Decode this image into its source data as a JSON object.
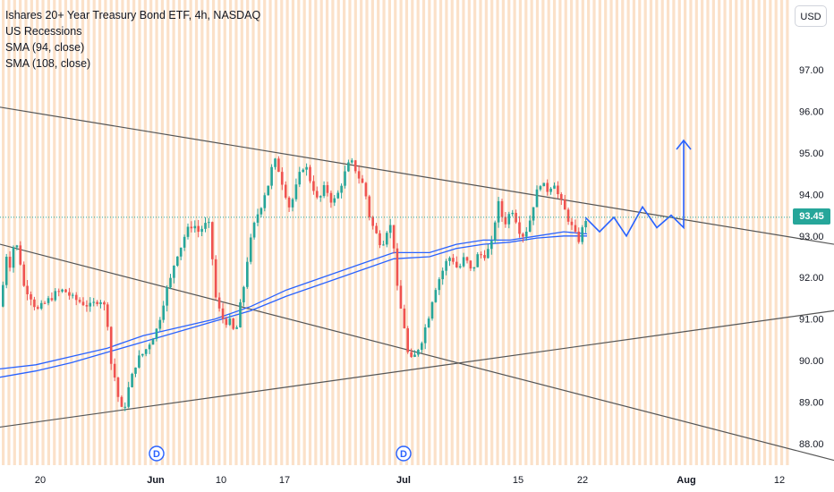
{
  "legend": {
    "title": "Ishares 20+ Year Treasury Bond ETF, 4h, NASDAQ",
    "indicator_1": "US Recessions",
    "indicator_2": "SMA (94, close)",
    "indicator_3": "SMA (108, close)"
  },
  "currency_button": "USD",
  "last_price_label": "93.45",
  "colors": {
    "up": "#26a69a",
    "down": "#ef5350",
    "sma": "#2962ff",
    "recession": "#f7c99c",
    "trendline": "#555555",
    "projection": "#2962ff",
    "last_price": "#26a69a"
  },
  "event_markers": [
    "D",
    "D"
  ],
  "chart_data": {
    "type": "candlestick",
    "title": "Ishares 20+ Year Treasury Bond ETF, 4h, NASDAQ",
    "xlabel": "",
    "ylabel": "",
    "ylim": [
      87.6,
      98.4
    ],
    "y_ticks": [
      "97.00",
      "96.00",
      "95.00",
      "94.00",
      "93.00",
      "92.00",
      "91.00",
      "90.00",
      "89.00",
      "88.00"
    ],
    "x_ticks": [
      "20",
      "Jun",
      "10",
      "17",
      "Jul",
      "15",
      "22",
      "Aug",
      "12"
    ],
    "last_price": 93.45,
    "grid": false,
    "price_path": [
      [
        0,
        91.3
      ],
      [
        5,
        92.6
      ],
      [
        10,
        92.3
      ],
      [
        15,
        92.9
      ],
      [
        20,
        92.6
      ],
      [
        25,
        91.8
      ],
      [
        32,
        91.6
      ],
      [
        40,
        91.2
      ],
      [
        50,
        91.4
      ],
      [
        60,
        91.6
      ],
      [
        70,
        91.7
      ],
      [
        80,
        91.5
      ],
      [
        90,
        91.4
      ],
      [
        100,
        91.3
      ],
      [
        110,
        91.5
      ],
      [
        118,
        91.2
      ],
      [
        122,
        90.0
      ],
      [
        126,
        89.7
      ],
      [
        130,
        89.2
      ],
      [
        134,
        88.8
      ],
      [
        138,
        88.9
      ],
      [
        142,
        89.3
      ],
      [
        146,
        89.6
      ],
      [
        150,
        89.9
      ],
      [
        155,
        90.1
      ],
      [
        160,
        90.2
      ],
      [
        165,
        90.4
      ],
      [
        170,
        90.6
      ],
      [
        175,
        90.8
      ],
      [
        180,
        91.3
      ],
      [
        185,
        91.7
      ],
      [
        190,
        92.0
      ],
      [
        195,
        92.5
      ],
      [
        200,
        92.7
      ],
      [
        205,
        93.0
      ],
      [
        210,
        93.2
      ],
      [
        215,
        93.3
      ],
      [
        220,
        93.1
      ],
      [
        225,
        93.2
      ],
      [
        230,
        93.3
      ],
      [
        234,
        93.2
      ],
      [
        238,
        91.7
      ],
      [
        242,
        91.3
      ],
      [
        246,
        91.1
      ],
      [
        250,
        90.9
      ],
      [
        254,
        91.0
      ],
      [
        258,
        90.8
      ],
      [
        262,
        90.6
      ],
      [
        266,
        91.2
      ],
      [
        270,
        91.6
      ],
      [
        274,
        92.3
      ],
      [
        278,
        92.8
      ],
      [
        282,
        93.2
      ],
      [
        286,
        93.5
      ],
      [
        290,
        93.7
      ],
      [
        294,
        94.0
      ],
      [
        298,
        94.2
      ],
      [
        302,
        94.6
      ],
      [
        306,
        94.8
      ],
      [
        310,
        94.6
      ],
      [
        314,
        94.3
      ],
      [
        318,
        94.0
      ],
      [
        322,
        93.7
      ],
      [
        326,
        93.9
      ],
      [
        330,
        94.2
      ],
      [
        334,
        94.5
      ],
      [
        338,
        94.7
      ],
      [
        342,
        94.6
      ],
      [
        346,
        94.3
      ],
      [
        350,
        94.1
      ],
      [
        354,
        93.8
      ],
      [
        358,
        94.0
      ],
      [
        362,
        94.2
      ],
      [
        366,
        94.0
      ],
      [
        370,
        93.8
      ],
      [
        374,
        93.9
      ],
      [
        378,
        94.1
      ],
      [
        382,
        94.4
      ],
      [
        386,
        94.6
      ],
      [
        390,
        94.8
      ],
      [
        394,
        94.7
      ],
      [
        398,
        94.5
      ],
      [
        402,
        94.3
      ],
      [
        406,
        94.2
      ],
      [
        410,
        93.6
      ],
      [
        414,
        93.3
      ],
      [
        418,
        93.1
      ],
      [
        422,
        92.9
      ],
      [
        426,
        92.8
      ],
      [
        430,
        93.1
      ],
      [
        434,
        93.3
      ],
      [
        438,
        93.0
      ],
      [
        442,
        91.8
      ],
      [
        446,
        91.3
      ],
      [
        450,
        90.9
      ],
      [
        454,
        90.2
      ],
      [
        458,
        90.0
      ],
      [
        462,
        90.1
      ],
      [
        466,
        90.3
      ],
      [
        470,
        90.5
      ],
      [
        474,
        90.8
      ],
      [
        478,
        91.1
      ],
      [
        482,
        91.5
      ],
      [
        486,
        91.8
      ],
      [
        490,
        92.0
      ],
      [
        494,
        92.2
      ],
      [
        498,
        92.4
      ],
      [
        502,
        92.5
      ],
      [
        506,
        92.4
      ],
      [
        510,
        92.2
      ],
      [
        514,
        92.3
      ],
      [
        518,
        92.5
      ],
      [
        522,
        92.3
      ],
      [
        526,
        92.1
      ],
      [
        530,
        92.4
      ],
      [
        534,
        92.6
      ],
      [
        538,
        92.5
      ],
      [
        542,
        92.6
      ],
      [
        546,
        92.7
      ],
      [
        550,
        92.9
      ],
      [
        554,
        93.9
      ],
      [
        558,
        93.6
      ],
      [
        562,
        93.3
      ],
      [
        566,
        93.4
      ],
      [
        570,
        93.7
      ],
      [
        574,
        93.5
      ],
      [
        578,
        93.2
      ],
      [
        582,
        93.0
      ],
      [
        586,
        93.1
      ],
      [
        590,
        93.3
      ],
      [
        594,
        93.7
      ],
      [
        598,
        94.0
      ],
      [
        602,
        94.3
      ],
      [
        606,
        94.2
      ],
      [
        610,
        94.1
      ],
      [
        614,
        94.2
      ],
      [
        618,
        94.3
      ],
      [
        622,
        94.0
      ],
      [
        626,
        93.8
      ],
      [
        630,
        93.6
      ],
      [
        634,
        93.4
      ],
      [
        638,
        93.2
      ],
      [
        642,
        93.0
      ],
      [
        646,
        92.9
      ],
      [
        650,
        93.2
      ],
      [
        654,
        93.45
      ]
    ],
    "sma_94": [
      [
        0,
        89.8
      ],
      [
        40,
        89.9
      ],
      [
        80,
        90.1
      ],
      [
        120,
        90.3
      ],
      [
        160,
        90.6
      ],
      [
        200,
        90.8
      ],
      [
        240,
        91.0
      ],
      [
        280,
        91.3
      ],
      [
        320,
        91.7
      ],
      [
        360,
        92.0
      ],
      [
        400,
        92.3
      ],
      [
        440,
        92.6
      ],
      [
        480,
        92.6
      ],
      [
        510,
        92.8
      ],
      [
        540,
        92.9
      ],
      [
        570,
        92.9
      ],
      [
        600,
        93.0
      ],
      [
        630,
        93.1
      ],
      [
        656,
        93.05
      ]
    ],
    "sma_108": [
      [
        0,
        89.6
      ],
      [
        40,
        89.75
      ],
      [
        80,
        89.95
      ],
      [
        120,
        90.2
      ],
      [
        160,
        90.45
      ],
      [
        200,
        90.7
      ],
      [
        240,
        90.95
      ],
      [
        280,
        91.2
      ],
      [
        320,
        91.55
      ],
      [
        360,
        91.85
      ],
      [
        400,
        92.15
      ],
      [
        440,
        92.45
      ],
      [
        480,
        92.5
      ],
      [
        510,
        92.7
      ],
      [
        540,
        92.8
      ],
      [
        570,
        92.85
      ],
      [
        600,
        92.95
      ],
      [
        630,
        93.0
      ],
      [
        656,
        93.0
      ]
    ],
    "trendlines": [
      {
        "from": [
          0,
          96.1
        ],
        "to": [
          932,
          92.8
        ]
      },
      {
        "from": [
          0,
          92.8
        ],
        "to": [
          932,
          87.6
        ]
      },
      {
        "from": [
          0,
          88.4
        ],
        "to": [
          932,
          91.2
        ]
      }
    ],
    "projection": [
      [
        654,
        93.45
      ],
      [
        670,
        93.1
      ],
      [
        686,
        93.45
      ],
      [
        700,
        93.0
      ],
      [
        718,
        93.7
      ],
      [
        734,
        93.2
      ],
      [
        750,
        93.5
      ],
      [
        764,
        93.2
      ],
      [
        764,
        95.3
      ]
    ]
  }
}
